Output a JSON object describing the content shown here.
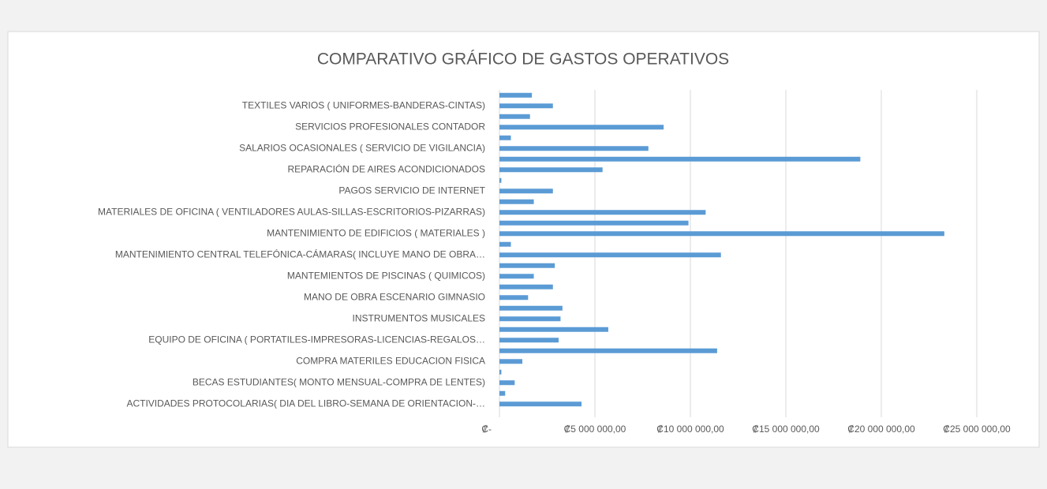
{
  "chart_data": {
    "type": "barh",
    "title": "COMPARATIVO GRÁFICO DE GASTOS OPERATIVOS",
    "categories": [
      "ACTIVIDADES PROTOCOLARIAS( DIA DEL LIBRO-SEMANA DE ORIENTACION-…",
      null,
      "BECAS ESTUDIANTES( MONTO MENSUAL-COMPRA DE LENTES)",
      null,
      "COMPRA MATERILES EDUCACION FISICA",
      null,
      "EQUIPO DE OFICINA ( PORTATILES-IMPRESORAS-LICENCIAS-REGALOS…",
      null,
      "INSTRUMENTOS MUSICALES",
      null,
      "MANO DE OBRA ESCENARIO GIMNASIO",
      null,
      "MANTEMIENTOS DE PISCINAS ( QUIMICOS)",
      null,
      "MANTENIMIENTO CENTRAL TELEFÓNICA-CÁMARAS( INCLUYE MANO DE OBRA…",
      null,
      "MANTENIMIENTO DE EDIFICIOS ( MATERIALES )",
      null,
      "MATERIALES DE OFICINA ( VENTILADORES AULAS-SILLAS-ESCRITORIOS-PIZARRAS)",
      null,
      "PAGOS SERVICIO DE INTERNET",
      null,
      "REPARACIÓN DE AIRES ACONDICIONADOS",
      null,
      "SALARIOS OCASIONALES ( SERVICIO DE VIGILANCIA)",
      null,
      "SERVICIOS PROFESIONALES CONTADOR",
      null,
      "TEXTILES VARIOS ( UNIFORMES-BANDERAS-CINTAS)",
      null
    ],
    "values": [
      4300000,
      300000,
      800000,
      100000,
      1200000,
      11400000,
      3100000,
      5700000,
      3200000,
      3300000,
      1500000,
      2800000,
      1800000,
      2900000,
      11600000,
      600000,
      23300000,
      9900000,
      10800000,
      1800000,
      2800000,
      100000,
      5400000,
      18900000,
      7800000,
      600000,
      8600000,
      1600000,
      2800000,
      1700000
    ],
    "color": "#5b9bd5",
    "xlim": [
      0,
      25000000
    ],
    "xticks": [
      {
        "value": 0,
        "label": "₡-"
      },
      {
        "value": 5000000,
        "label": "₡5 000 000,00"
      },
      {
        "value": 10000000,
        "label": "₡10 000 000,00"
      },
      {
        "value": 15000000,
        "label": "₡15 000 000,00"
      },
      {
        "value": 20000000,
        "label": "₡20 000 000,00"
      },
      {
        "value": 25000000,
        "label": "₡25 000 000,00"
      }
    ],
    "grid": true
  }
}
